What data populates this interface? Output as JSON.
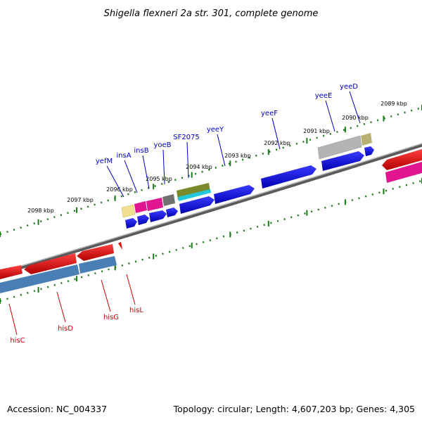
{
  "title": "Shigella flexneri 2a str. 301, complete genome",
  "footer": {
    "accession": "Accession: NC_004337",
    "info": "Topology: circular; Length: 4,607,203 bp; Genes: 4,305"
  },
  "kbp_labels": [
    "2089 kbp",
    "2090 kbp",
    "2091 kbp",
    "2092 kbp",
    "2093 kbp",
    "2094 kbp",
    "2095 kbp",
    "2096 kbp",
    "2097 kbp",
    "2098 kbp"
  ],
  "forward_genes": [
    "yeeD",
    "yeeE",
    "yeeF",
    "yeeY",
    "SF2075",
    "yoeB",
    "insB",
    "insA",
    "yefM"
  ],
  "reverse_genes": [
    "hisL",
    "hisG",
    "hisD",
    "hisC"
  ],
  "colors": {
    "cds_forward": "#0000ee",
    "cds_reverse": "#ee0000",
    "gene_pink": "#e0158f",
    "gene_steelblue": "#4a7fb5",
    "gene_gray": "#b4b4b4",
    "gene_olive": "#7a8a2a",
    "gene_cyan": "#22c8d8",
    "gene_khaki": "#b8b070",
    "gene_lightyellow": "#f0e090",
    "gene_darkgray": "#707070",
    "tick_green": "#1a7a1a",
    "backbone": "#808080"
  }
}
